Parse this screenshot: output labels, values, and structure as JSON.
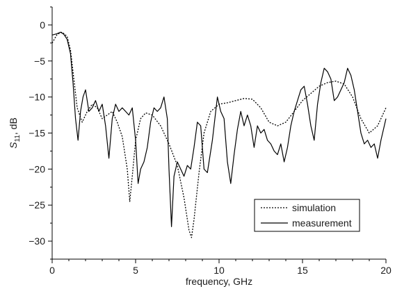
{
  "chart_data": {
    "type": "line",
    "xlabel": "frequency, GHz",
    "ylabel_main": "S",
    "ylabel_sub": "11",
    "ylabel_unit": ", dB",
    "xlim": [
      0,
      20
    ],
    "ylim": [
      -32.5,
      2.5
    ],
    "x_ticks": [
      0,
      5,
      10,
      15,
      20
    ],
    "y_ticks": [
      0,
      -5,
      -10,
      -15,
      -20,
      -25,
      -30
    ],
    "grid": false,
    "legend_position": "bottom-right",
    "series": [
      {
        "name": "simulation",
        "style": "dotted",
        "color": "#000000",
        "x": [
          0,
          0.3,
          0.6,
          0.9,
          1.1,
          1.3,
          1.5,
          1.8,
          2.1,
          2.4,
          2.7,
          3.0,
          3.3,
          3.6,
          3.9,
          4.2,
          4.5,
          4.65,
          4.8,
          5.0,
          5.3,
          5.6,
          6.0,
          6.5,
          7.0,
          7.5,
          7.9,
          8.2,
          8.35,
          8.5,
          8.8,
          9.1,
          9.5,
          10.0,
          10.5,
          11.0,
          11.5,
          12.0,
          12.5,
          13.0,
          13.5,
          14.0,
          14.5,
          15.0,
          15.5,
          16.0,
          16.5,
          17.0,
          17.5,
          18.0,
          18.5,
          19.0,
          19.5,
          20.0
        ],
        "y": [
          -2.5,
          -1.3,
          -1.0,
          -1.6,
          -3.5,
          -7.5,
          -11.5,
          -13.5,
          -12.0,
          -11.0,
          -11.5,
          -13.0,
          -12.5,
          -12.0,
          -13.5,
          -15.5,
          -20.0,
          -24.5,
          -21.0,
          -16.0,
          -13.0,
          -12.2,
          -12.5,
          -14.0,
          -16.5,
          -19.5,
          -24.0,
          -28.5,
          -29.5,
          -27.0,
          -20.5,
          -15.0,
          -12.0,
          -11.0,
          -10.8,
          -10.5,
          -10.2,
          -10.3,
          -11.5,
          -13.5,
          -14.0,
          -13.5,
          -12.0,
          -10.5,
          -9.5,
          -8.5,
          -8.0,
          -7.8,
          -8.2,
          -10.0,
          -13.0,
          -15.0,
          -14.0,
          -11.5
        ]
      },
      {
        "name": "measurement",
        "style": "solid",
        "color": "#000000",
        "x": [
          0,
          0.3,
          0.5,
          0.7,
          0.9,
          1.1,
          1.25,
          1.4,
          1.55,
          1.7,
          1.85,
          2.0,
          2.2,
          2.4,
          2.6,
          2.8,
          3.0,
          3.2,
          3.4,
          3.6,
          3.8,
          4.0,
          4.2,
          4.4,
          4.6,
          4.8,
          5.0,
          5.15,
          5.3,
          5.5,
          5.7,
          5.9,
          6.1,
          6.3,
          6.5,
          6.7,
          6.9,
          7.0,
          7.15,
          7.3,
          7.5,
          7.7,
          7.9,
          8.1,
          8.3,
          8.5,
          8.7,
          8.9,
          9.1,
          9.3,
          9.6,
          9.9,
          10.1,
          10.3,
          10.5,
          10.7,
          10.9,
          11.1,
          11.3,
          11.5,
          11.7,
          11.9,
          12.1,
          12.3,
          12.5,
          12.7,
          12.9,
          13.1,
          13.3,
          13.5,
          13.7,
          13.9,
          14.1,
          14.3,
          14.5,
          14.7,
          14.9,
          15.1,
          15.3,
          15.5,
          15.7,
          15.9,
          16.1,
          16.3,
          16.5,
          16.7,
          16.9,
          17.1,
          17.3,
          17.5,
          17.7,
          17.9,
          18.1,
          18.3,
          18.5,
          18.7,
          18.9,
          19.1,
          19.3,
          19.5,
          19.7,
          19.9,
          20.0
        ],
        "y": [
          -1.4,
          -1.2,
          -1.0,
          -1.3,
          -2.0,
          -4.0,
          -8.0,
          -13.0,
          -16.0,
          -12.0,
          -10.0,
          -9.0,
          -12.0,
          -11.5,
          -10.5,
          -12.0,
          -11.0,
          -14.0,
          -18.5,
          -13.0,
          -11.0,
          -12.0,
          -11.5,
          -12.0,
          -12.5,
          -11.5,
          -16.0,
          -22.0,
          -20.0,
          -19.0,
          -17.0,
          -13.5,
          -11.5,
          -12.0,
          -11.5,
          -10.0,
          -13.0,
          -20.0,
          -28.0,
          -21.0,
          -19.0,
          -20.0,
          -21.0,
          -19.5,
          -20.0,
          -17.0,
          -13.5,
          -14.0,
          -20.0,
          -20.5,
          -16.0,
          -10.0,
          -12.0,
          -13.0,
          -19.0,
          -22.0,
          -18.0,
          -14.5,
          -12.0,
          -14.0,
          -12.5,
          -14.0,
          -17.0,
          -14.0,
          -15.0,
          -14.5,
          -16.0,
          -16.5,
          -17.5,
          -18.0,
          -16.5,
          -19.0,
          -17.0,
          -14.0,
          -12.0,
          -10.5,
          -9.0,
          -8.5,
          -11.0,
          -14.0,
          -16.0,
          -11.0,
          -8.0,
          -6.0,
          -6.5,
          -7.5,
          -10.5,
          -10.0,
          -9.0,
          -8.0,
          -6.0,
          -7.0,
          -9.0,
          -12.0,
          -15.0,
          -16.5,
          -16.0,
          -17.0,
          -16.5,
          -18.5,
          -16.0,
          -14.0,
          -13.0
        ]
      }
    ]
  }
}
